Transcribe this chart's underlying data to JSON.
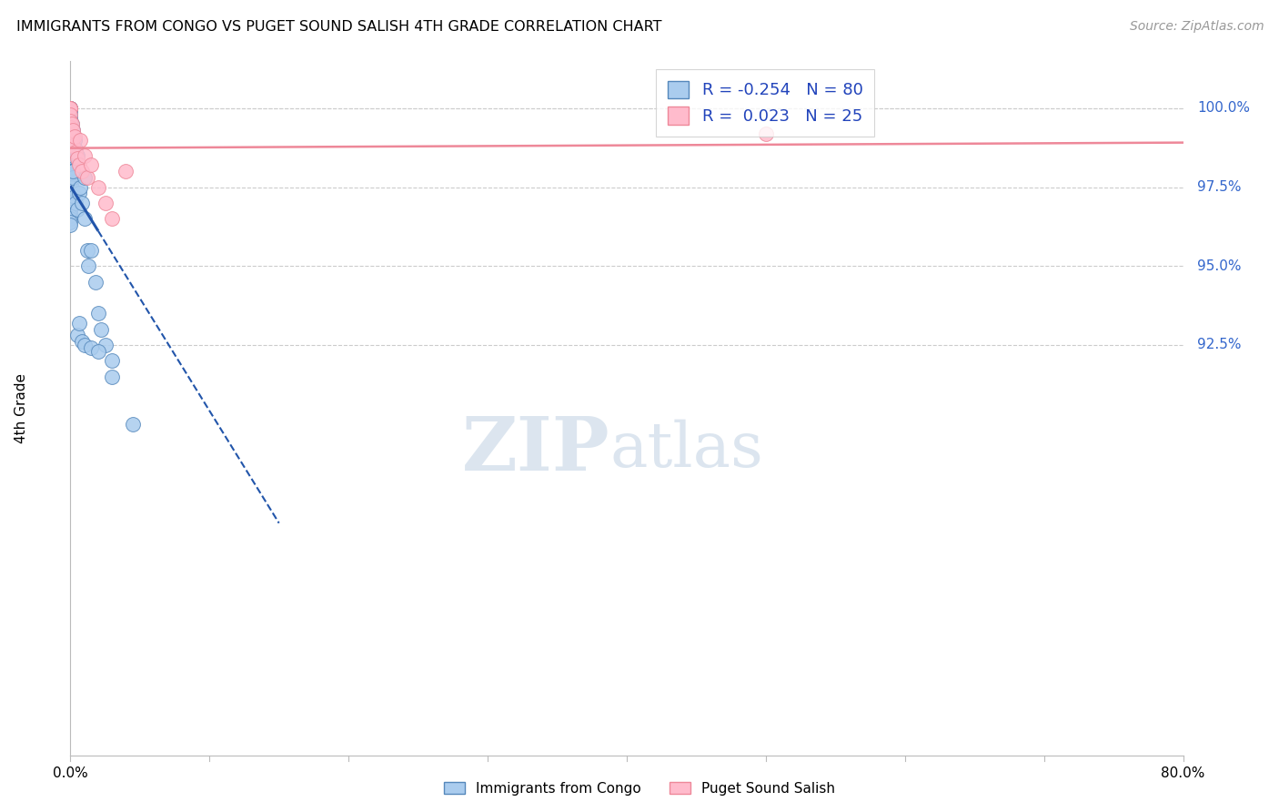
{
  "title": "IMMIGRANTS FROM CONGO VS PUGET SOUND SALISH 4TH GRADE CORRELATION CHART",
  "source": "Source: ZipAtlas.com",
  "ylabel": "4th Grade",
  "xmin": 0.0,
  "xmax": 80.0,
  "ymin": 79.5,
  "ymax": 101.5,
  "yticks": [
    92.5,
    95.0,
    97.5,
    100.0
  ],
  "blue_R": -0.254,
  "blue_N": 80,
  "pink_R": 0.023,
  "pink_N": 25,
  "blue_fill": "#AACCEE",
  "blue_edge": "#5588BB",
  "pink_fill": "#FFBBCC",
  "pink_edge": "#EE8899",
  "blue_reg_color": "#2255AA",
  "pink_reg_color": "#EE8899",
  "blue_scatter_x": [
    0.0,
    0.0,
    0.0,
    0.0,
    0.0,
    0.0,
    0.0,
    0.0,
    0.0,
    0.0,
    0.0,
    0.0,
    0.0,
    0.0,
    0.0,
    0.0,
    0.0,
    0.0,
    0.0,
    0.0,
    0.0,
    0.0,
    0.0,
    0.0,
    0.0,
    0.0,
    0.0,
    0.0,
    0.0,
    0.0,
    0.0,
    0.0,
    0.0,
    0.0,
    0.0,
    0.0,
    0.0,
    0.0,
    0.0,
    0.0,
    0.0,
    0.0,
    0.0,
    0.1,
    0.1,
    0.1,
    0.1,
    0.1,
    0.2,
    0.2,
    0.2,
    0.3,
    0.3,
    0.4,
    0.4,
    0.5,
    0.5,
    0.6,
    0.7,
    0.8,
    1.0,
    1.0,
    1.2,
    1.3,
    1.5,
    1.8,
    2.0,
    2.2,
    2.5,
    3.0,
    0.1,
    0.2,
    0.5,
    0.6,
    0.8,
    1.0,
    1.5,
    2.0,
    3.0,
    4.5
  ],
  "blue_scatter_y": [
    100.0,
    100.0,
    100.0,
    100.0,
    100.0,
    99.9,
    99.8,
    99.7,
    99.6,
    99.5,
    99.4,
    99.3,
    99.2,
    99.1,
    99.0,
    99.0,
    98.9,
    98.8,
    98.7,
    98.6,
    98.5,
    98.4,
    98.3,
    98.2,
    98.1,
    98.0,
    97.9,
    97.8,
    97.7,
    97.6,
    97.5,
    97.4,
    97.3,
    97.2,
    97.1,
    97.0,
    96.9,
    96.8,
    96.7,
    96.6,
    96.5,
    96.4,
    96.3,
    99.5,
    99.2,
    98.8,
    98.0,
    97.5,
    99.3,
    98.5,
    97.8,
    99.0,
    97.2,
    98.7,
    97.0,
    98.5,
    96.8,
    97.3,
    97.5,
    97.0,
    97.8,
    96.5,
    95.5,
    95.0,
    95.5,
    94.5,
    93.5,
    93.0,
    92.5,
    92.0,
    99.0,
    98.0,
    92.8,
    93.2,
    92.6,
    92.5,
    92.4,
    92.3,
    91.5,
    90.0
  ],
  "pink_scatter_x": [
    0.0,
    0.0,
    0.0,
    0.0,
    0.0,
    0.0,
    0.0,
    0.1,
    0.1,
    0.2,
    0.2,
    0.3,
    0.4,
    0.5,
    0.6,
    0.7,
    0.8,
    1.0,
    1.2,
    1.5,
    2.0,
    2.5,
    3.0,
    4.0,
    50.0
  ],
  "pink_scatter_y": [
    100.0,
    100.0,
    100.0,
    99.8,
    99.6,
    99.4,
    99.2,
    99.5,
    99.0,
    99.3,
    98.8,
    99.1,
    98.6,
    98.4,
    98.2,
    99.0,
    98.0,
    98.5,
    97.8,
    98.2,
    97.5,
    97.0,
    96.5,
    98.0,
    99.2
  ],
  "watermark_zip": "ZIP",
  "watermark_atlas": "atlas"
}
